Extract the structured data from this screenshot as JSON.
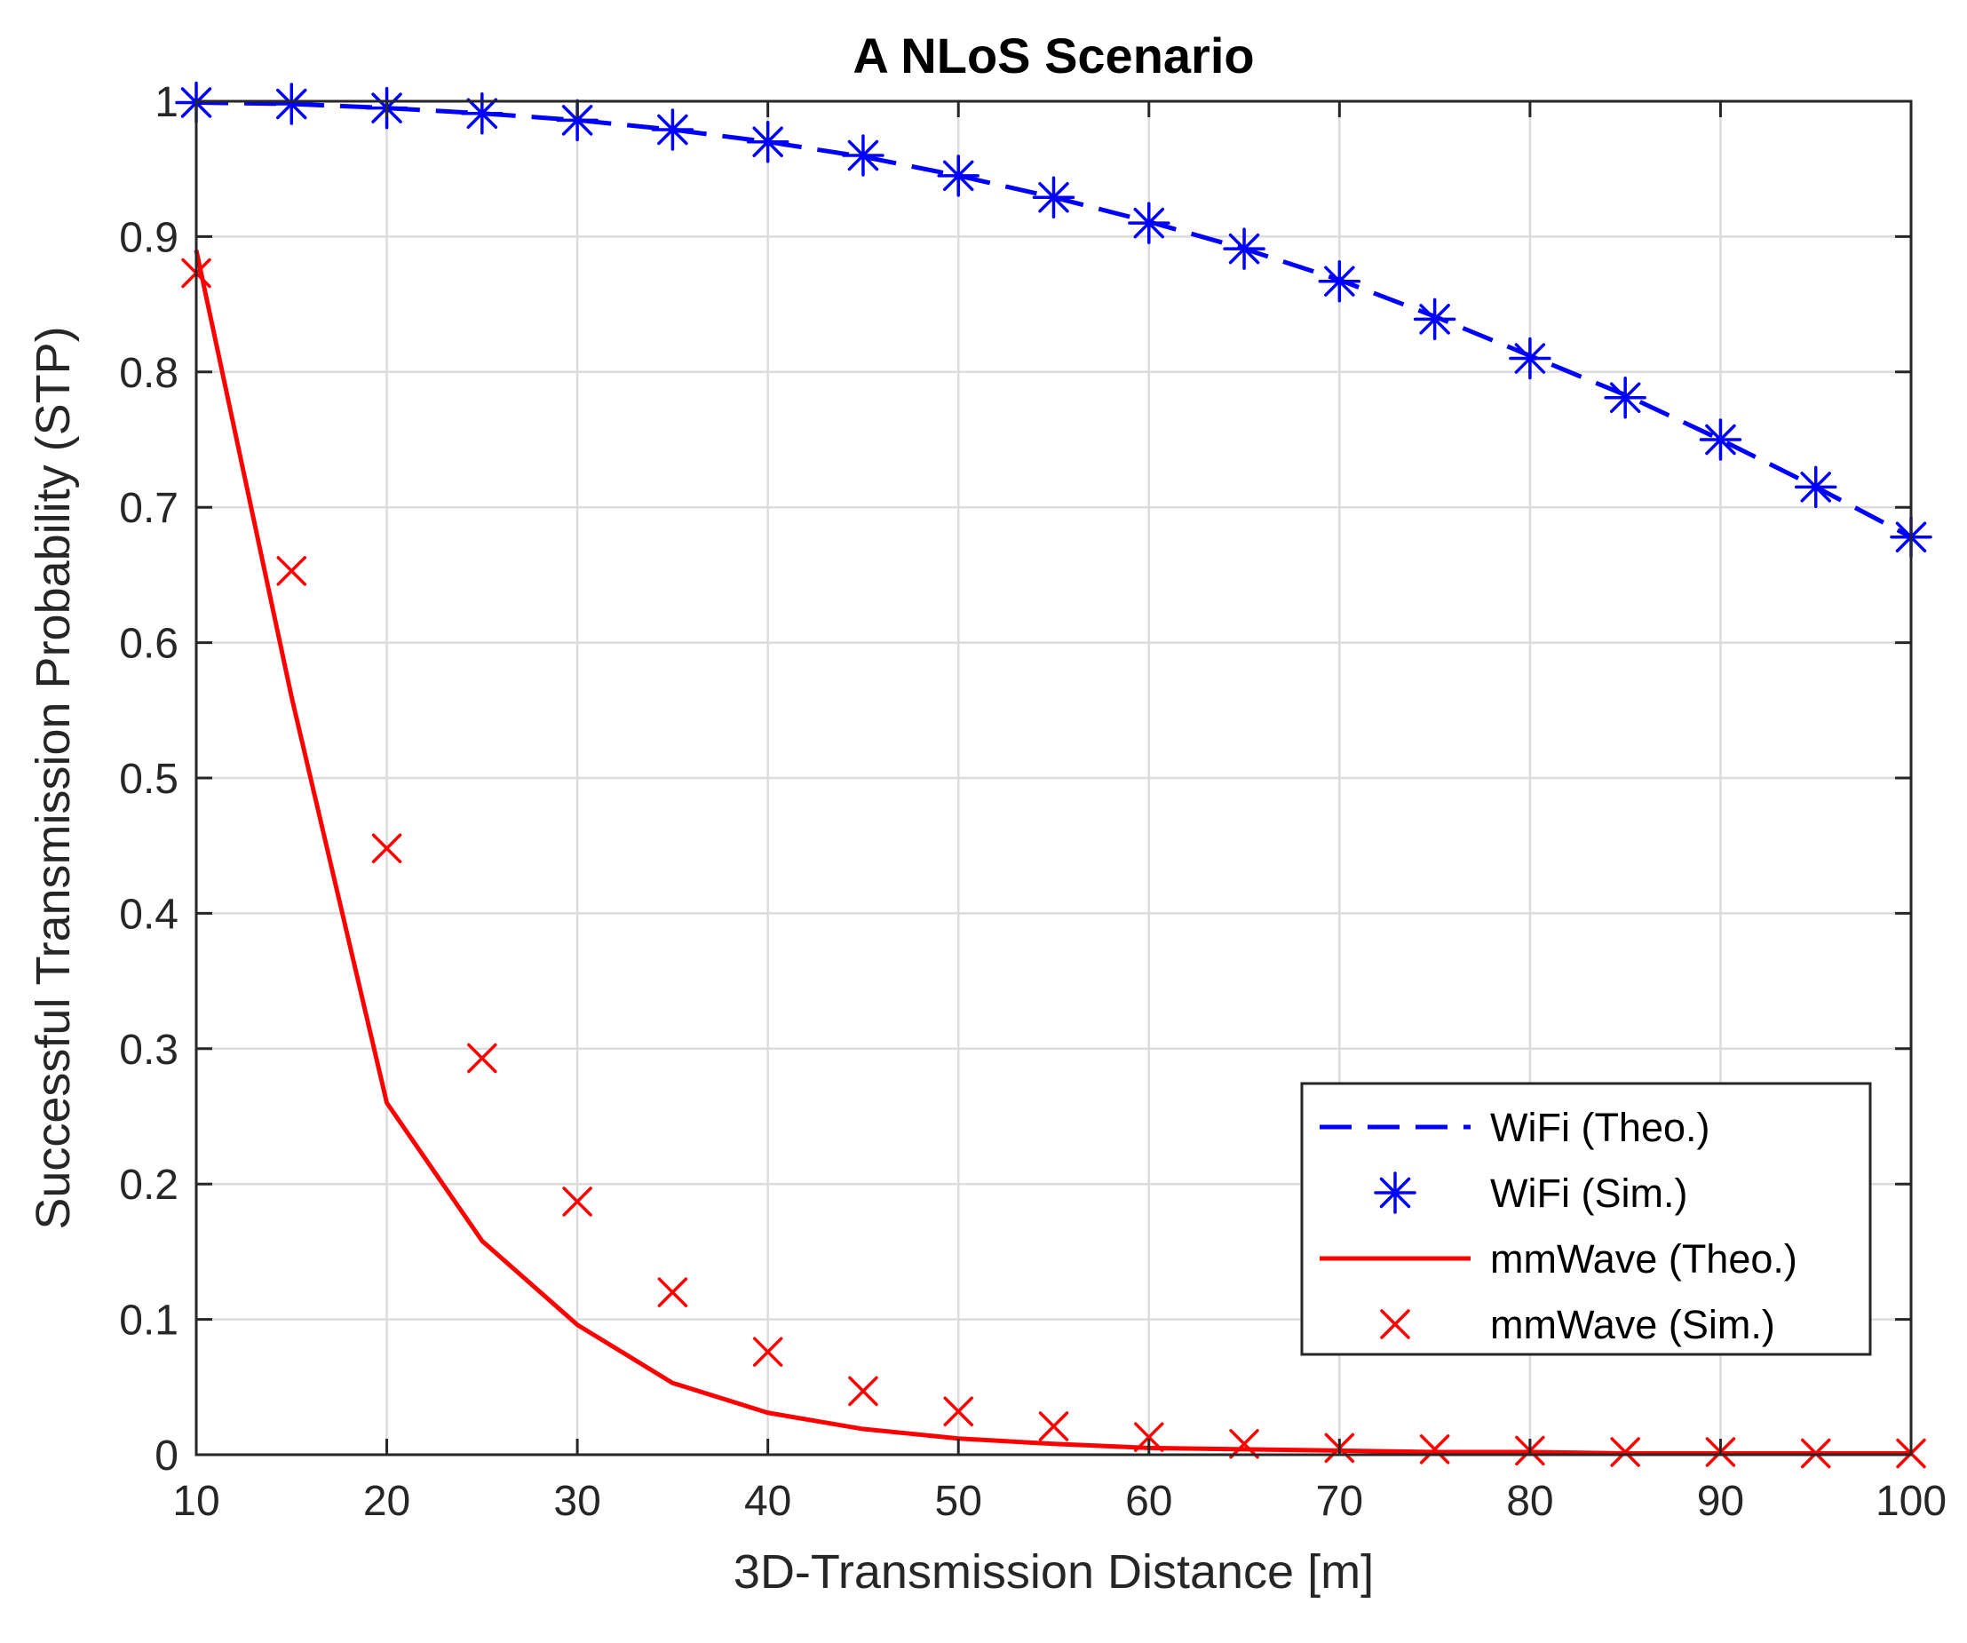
{
  "chart_data": {
    "type": "line",
    "title": "A NLoS Scenario",
    "xlabel": "3D-Transmission Distance [m]",
    "ylabel": "Successful Transmission Probability (STP)",
    "xlim": [
      10,
      100
    ],
    "ylim": [
      0,
      1
    ],
    "grid": true,
    "legend_position": "bottom-right",
    "x_ticks": [
      "10",
      "20",
      "30",
      "40",
      "50",
      "60",
      "70",
      "80",
      "90",
      "100"
    ],
    "y_ticks": [
      "0",
      "0.1",
      "0.2",
      "0.3",
      "0.4",
      "0.5",
      "0.6",
      "0.7",
      "0.8",
      "0.9",
      "1"
    ],
    "x": [
      10,
      15,
      20,
      25,
      30,
      35,
      40,
      45,
      50,
      55,
      60,
      65,
      70,
      75,
      80,
      85,
      90,
      95,
      100
    ],
    "series": [
      {
        "name": "WiFi (Theo.)",
        "style": "dashed-line",
        "color": "#0000ff",
        "values": [
          0.999,
          0.998,
          0.995,
          0.991,
          0.986,
          0.979,
          0.97,
          0.959,
          0.945,
          0.929,
          0.911,
          0.891,
          0.868,
          0.841,
          0.812,
          0.783,
          0.75,
          0.715,
          0.678
        ]
      },
      {
        "name": "WiFi (Sim.)",
        "style": "asterisk-marker",
        "color": "#0000ff",
        "values": [
          0.999,
          0.998,
          0.995,
          0.991,
          0.986,
          0.979,
          0.97,
          0.96,
          0.945,
          0.929,
          0.91,
          0.891,
          0.867,
          0.839,
          0.81,
          0.781,
          0.75,
          0.715,
          0.678
        ]
      },
      {
        "name": "mmWave (Theo.)",
        "style": "solid-line",
        "color": "#ff0000",
        "values": [
          0.89,
          0.56,
          0.26,
          0.158,
          0.096,
          0.053,
          0.031,
          0.019,
          0.012,
          0.008,
          0.005,
          0.004,
          0.003,
          0.002,
          0.002,
          0.001,
          0.001,
          0.001,
          0.001
        ]
      },
      {
        "name": "mmWave (Sim.)",
        "style": "x-marker",
        "color": "#ff0000",
        "values": [
          0.873,
          0.653,
          0.448,
          0.293,
          0.187,
          0.12,
          0.076,
          0.047,
          0.032,
          0.021,
          0.013,
          0.008,
          0.005,
          0.004,
          0.003,
          0.002,
          0.002,
          0.001,
          0.001
        ]
      }
    ]
  }
}
